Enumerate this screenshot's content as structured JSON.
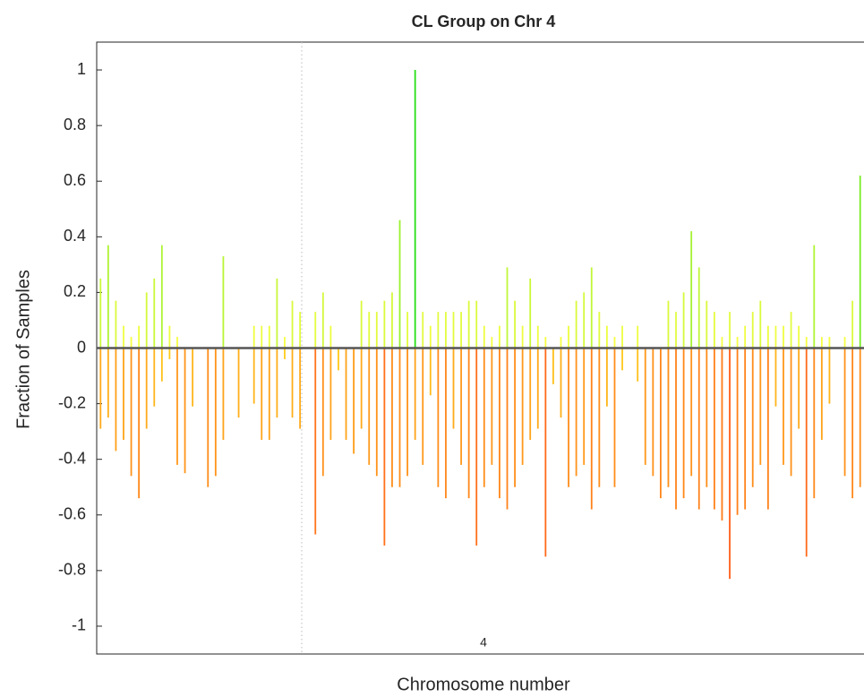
{
  "chart_data": {
    "type": "bar",
    "title": "CL Group on Chr 4",
    "ylabel": "Fraction of Samples",
    "xlabel": "Chromosome number",
    "xtick_label": "4",
    "ylim": [
      -1.1,
      1.1
    ],
    "yticks": [
      -1,
      -0.8,
      -0.6,
      -0.4,
      -0.2,
      0,
      0.2,
      0.4,
      0.6,
      0.8,
      1
    ],
    "grid": false,
    "categories": [
      null,
      null,
      null,
      null,
      null,
      null,
      null,
      null,
      null,
      null,
      null,
      null,
      null,
      null,
      null,
      null,
      null,
      null,
      null,
      null,
      null,
      null,
      null,
      null,
      null,
      null,
      null,
      null,
      null,
      null,
      null,
      null,
      null,
      null,
      null,
      null,
      null,
      null,
      null,
      null,
      null,
      null,
      null,
      null,
      null,
      null,
      null,
      null,
      null,
      null,
      null,
      null,
      null,
      null,
      null,
      null,
      null,
      null,
      null,
      null,
      null,
      null,
      null,
      null,
      null,
      null,
      null,
      null,
      null,
      null,
      null,
      null,
      null,
      null,
      null,
      null,
      null,
      null,
      null,
      null,
      null,
      null,
      null,
      null,
      null,
      null,
      null,
      null,
      null,
      null,
      null,
      null,
      null,
      null,
      null,
      null,
      null,
      null,
      null,
      null
    ],
    "series": [
      {
        "color": [
          "#ffff44",
          "#11dd11"
        ],
        "values": [
          0.25,
          0.37,
          0.17,
          0.08,
          0.04,
          0.08,
          0.2,
          0.25,
          0.37,
          0.08,
          0.04,
          0,
          0,
          0,
          0,
          0,
          0.33,
          0,
          0,
          0,
          0.08,
          0.08,
          0.08,
          0.25,
          0.04,
          0.17,
          0.13,
          0,
          0.13,
          0.2,
          0.08,
          0,
          0,
          0,
          0.17,
          0.13,
          0.13,
          0.17,
          0.2,
          0.46,
          0.13,
          1.0,
          0.13,
          0.08,
          0.13,
          0.13,
          0.13,
          0.13,
          0.17,
          0.17,
          0.08,
          0.04,
          0.08,
          0.29,
          0.17,
          0.08,
          0.25,
          0.08,
          0.04,
          0,
          0.04,
          0.08,
          0.17,
          0.2,
          0.29,
          0.13,
          0.08,
          0.04,
          0.08,
          0,
          0.08,
          0,
          0,
          0,
          0.17,
          0.13,
          0.2,
          0.42,
          0.29,
          0.17,
          0.13,
          0.04,
          0.13,
          0.04,
          0.08,
          0.13,
          0.17,
          0.08,
          0.08,
          0.08,
          0.13,
          0.08,
          0.04,
          0.37,
          0.04,
          0.04,
          0,
          0.04,
          0.17,
          0.62
        ]
      },
      {
        "color": [
          "#ffd21a",
          "#ff3a1a"
        ],
        "values": [
          -0.29,
          -0.25,
          -0.37,
          -0.33,
          -0.46,
          -0.54,
          -0.29,
          -0.21,
          -0.12,
          -0.04,
          -0.42,
          -0.45,
          -0.21,
          0,
          -0.5,
          -0.46,
          -0.33,
          0,
          -0.25,
          0,
          -0.2,
          -0.33,
          -0.33,
          -0.25,
          -0.04,
          -0.25,
          -0.29,
          0,
          -0.67,
          -0.46,
          -0.33,
          -0.08,
          -0.33,
          -0.38,
          -0.29,
          -0.42,
          -0.46,
          -0.71,
          -0.5,
          -0.5,
          -0.46,
          -0.33,
          -0.42,
          -0.17,
          -0.5,
          -0.54,
          -0.29,
          -0.42,
          -0.54,
          -0.71,
          -0.5,
          -0.42,
          -0.54,
          -0.58,
          -0.5,
          -0.42,
          -0.33,
          -0.29,
          -0.75,
          -0.13,
          -0.25,
          -0.5,
          -0.46,
          -0.42,
          -0.58,
          -0.5,
          -0.21,
          -0.5,
          -0.08,
          0,
          -0.12,
          -0.42,
          -0.46,
          -0.54,
          -0.5,
          -0.58,
          -0.54,
          -0.46,
          -0.58,
          -0.5,
          -0.58,
          -0.62,
          -0.83,
          -0.6,
          -0.58,
          -0.5,
          -0.42,
          -0.58,
          -0.21,
          -0.42,
          -0.46,
          -0.29,
          -0.75,
          -0.54,
          -0.33,
          -0.2,
          0,
          -0.46,
          -0.54,
          -0.5
        ]
      }
    ]
  }
}
